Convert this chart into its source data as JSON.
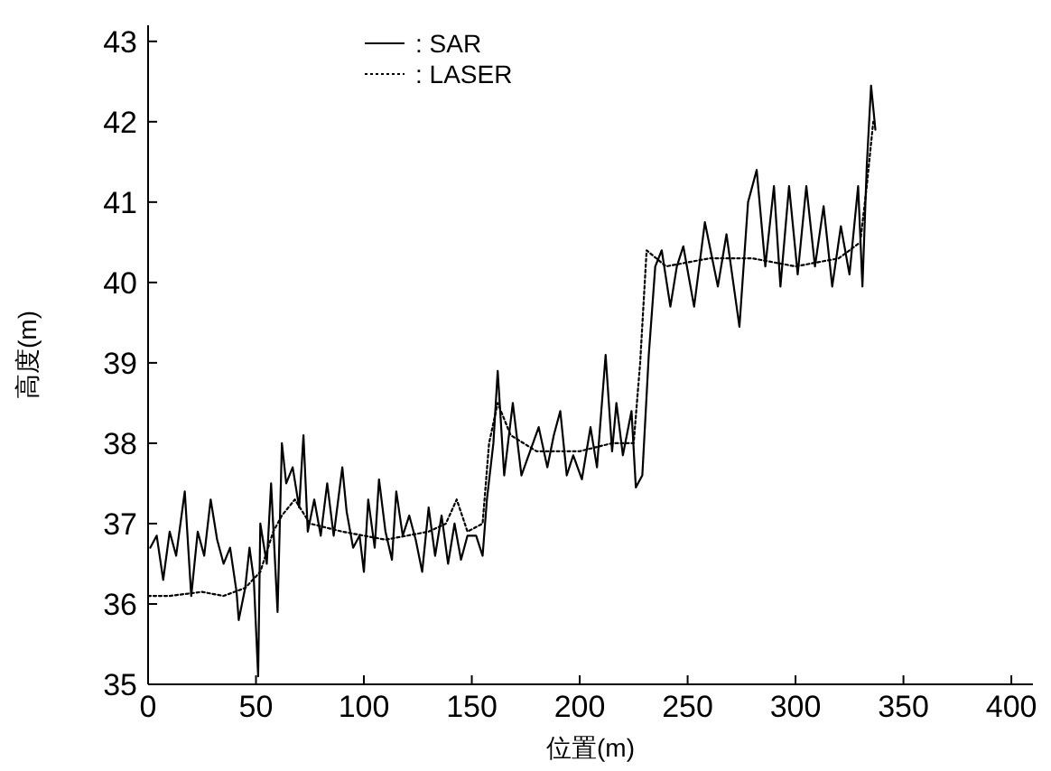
{
  "chart_data": {
    "type": "line",
    "xlabel": "位置(m)",
    "ylabel": "高度(m)",
    "xlim": [
      0,
      410
    ],
    "ylim": [
      35,
      43.2
    ],
    "xticks": [
      0,
      50,
      100,
      150,
      200,
      250,
      300,
      350,
      400
    ],
    "yticks": [
      35,
      36,
      37,
      38,
      39,
      40,
      41,
      42,
      43
    ],
    "legend": "top left",
    "grid": false,
    "marker": "none",
    "series": [
      {
        "name": ": SAR",
        "color": "#000000",
        "line_style": "solid",
        "x": [
          1,
          4,
          7,
          10,
          13,
          17,
          20,
          23,
          26,
          29,
          32,
          35,
          38,
          41,
          42,
          45,
          47,
          49,
          51,
          52,
          55,
          57,
          60,
          62,
          64,
          67,
          70,
          72,
          74,
          77,
          80,
          83,
          86,
          90,
          92,
          95,
          98,
          100,
          102,
          105,
          107,
          110,
          113,
          115,
          118,
          121,
          124,
          127,
          130,
          133,
          136,
          139,
          142,
          145,
          148,
          152,
          155,
          157,
          160,
          162,
          165,
          169,
          173,
          177,
          181,
          185,
          188,
          191,
          194,
          197,
          201,
          205,
          208,
          212,
          215,
          217,
          220,
          224,
          226,
          229,
          232,
          235,
          238,
          242,
          245,
          248,
          253,
          258,
          264,
          268,
          274,
          278,
          282,
          286,
          290,
          293,
          297,
          301,
          305,
          309,
          313,
          317,
          321,
          325,
          329,
          331,
          333,
          335,
          337
        ],
        "values": [
          36.7,
          36.85,
          36.3,
          36.9,
          36.6,
          37.4,
          36.1,
          36.9,
          36.6,
          37.3,
          36.8,
          36.5,
          36.7,
          36.15,
          35.8,
          36.2,
          36.7,
          36.3,
          35.1,
          37.0,
          36.5,
          37.5,
          35.9,
          38.0,
          37.5,
          37.7,
          37.2,
          38.1,
          36.9,
          37.3,
          36.85,
          37.5,
          36.85,
          37.7,
          37.15,
          36.7,
          36.85,
          36.4,
          37.3,
          36.7,
          37.55,
          36.9,
          36.55,
          37.4,
          36.85,
          37.1,
          36.8,
          36.4,
          37.2,
          36.6,
          37.1,
          36.5,
          37.0,
          36.55,
          36.85,
          36.85,
          36.6,
          37.3,
          38.0,
          38.9,
          37.6,
          38.5,
          37.6,
          37.9,
          38.2,
          37.7,
          38.1,
          38.4,
          37.6,
          37.85,
          37.55,
          38.2,
          37.7,
          39.1,
          37.9,
          38.5,
          37.85,
          38.4,
          37.45,
          37.6,
          39.1,
          40.2,
          40.4,
          39.7,
          40.2,
          40.45,
          39.7,
          40.75,
          39.95,
          40.6,
          39.45,
          41.0,
          41.4,
          40.2,
          41.2,
          39.95,
          41.2,
          40.1,
          41.2,
          40.2,
          40.95,
          39.95,
          40.7,
          40.1,
          41.2,
          39.95,
          41.45,
          42.45,
          41.9
        ]
      },
      {
        "name": ": LASER",
        "color": "#000000",
        "line_style": "dotted",
        "x": [
          0,
          10,
          25,
          35,
          45,
          52,
          58,
          62,
          68,
          75,
          90,
          110,
          130,
          138,
          143,
          148,
          155,
          158,
          162,
          168,
          180,
          200,
          215,
          225,
          228,
          231,
          240,
          260,
          280,
          300,
          320,
          330,
          333,
          336
        ],
        "values": [
          36.1,
          36.1,
          36.15,
          36.1,
          36.2,
          36.4,
          36.9,
          37.1,
          37.3,
          37.0,
          36.9,
          36.8,
          36.9,
          37.0,
          37.3,
          36.9,
          37.0,
          38.0,
          38.5,
          38.1,
          37.9,
          37.9,
          38.0,
          38.0,
          39.0,
          40.4,
          40.2,
          40.3,
          40.3,
          40.2,
          40.3,
          40.5,
          41.2,
          42.0
        ]
      }
    ]
  }
}
